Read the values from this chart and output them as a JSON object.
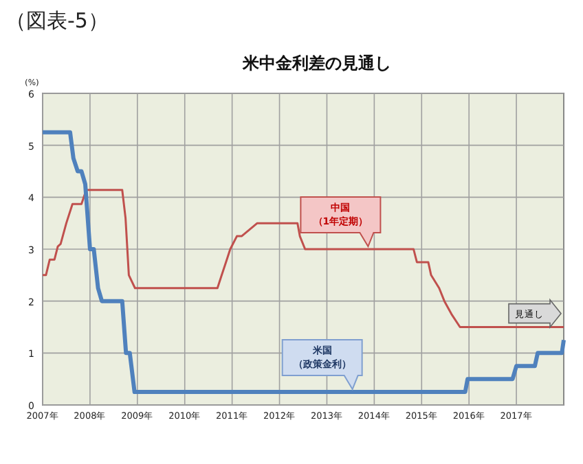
{
  "chart_data": {
    "type": "line",
    "title": "米中金利差の見通し",
    "subtitle": "（図表-5）",
    "ylabel": "(%)",
    "xlim": [
      2007,
      2018
    ],
    "xticks": [
      {
        "value": 2007,
        "label": "2007年"
      },
      {
        "value": 2008,
        "label": "2008年"
      },
      {
        "value": 2009,
        "label": "2009年"
      },
      {
        "value": 2010,
        "label": "2010年"
      },
      {
        "value": 2011,
        "label": "2011年"
      },
      {
        "value": 2012,
        "label": "2012年"
      },
      {
        "value": 2013,
        "label": "2013年"
      },
      {
        "value": 2014,
        "label": "2014年"
      },
      {
        "value": 2015,
        "label": "2015年"
      },
      {
        "value": 2016,
        "label": "2016年"
      },
      {
        "value": 2017,
        "label": "2017年"
      }
    ],
    "ylim": [
      0,
      6
    ],
    "yticks": [
      0,
      1,
      2,
      3,
      4,
      5,
      6
    ],
    "grid": true,
    "series": [
      {
        "color": "#c0504d",
        "x": [
          2007,
          2007.07,
          2007.15,
          2007.25,
          2007.32,
          2007.38,
          2007.5,
          2007.63,
          2007.82,
          2007.92,
          2008.68,
          2008.75,
          2008.82,
          2008.95,
          2010.69,
          2010.78,
          2010.87,
          2010.96,
          2011.1,
          2011.2,
          2011.53,
          2012.38,
          2012.43,
          2012.54,
          2014.83,
          2014.9,
          2015.14,
          2015.2,
          2015.37,
          2015.48,
          2015.63,
          2015.81,
          2018
        ],
        "values": [
          2.5,
          2.5,
          2.8,
          2.8,
          3.05,
          3.1,
          3.5,
          3.87,
          3.87,
          4.14,
          4.14,
          3.6,
          2.5,
          2.25,
          2.25,
          2.5,
          2.75,
          3.0,
          3.25,
          3.25,
          3.5,
          3.5,
          3.25,
          3.0,
          3.0,
          2.75,
          2.75,
          2.5,
          2.25,
          2.0,
          1.75,
          1.5,
          1.5
        ]
      },
      {
        "color": "#4f81bd",
        "x": [
          2007,
          2007.58,
          2007.65,
          2007.74,
          2007.82,
          2007.9,
          2008.0,
          2008.08,
          2008.17,
          2008.25,
          2008.68,
          2008.76,
          2008.84,
          2008.94,
          2015.92,
          2015.97,
          2016.92,
          2017.0,
          2017.39,
          2017.45,
          2017.96,
          2018
        ],
        "values": [
          5.25,
          5.25,
          4.75,
          4.5,
          4.5,
          4.25,
          3.0,
          3.0,
          2.25,
          2.0,
          2.0,
          1.0,
          1.0,
          0.25,
          0.25,
          0.5,
          0.5,
          0.75,
          0.75,
          1.0,
          1.0,
          1.25
        ]
      }
    ],
    "annotations": [
      {
        "text": "中国（1年定期）",
        "x": 2013.87,
        "y": 3.0
      },
      {
        "text": "米国（政策金利）",
        "x": 2013.54,
        "y": 0.25
      },
      "見通し"
    ]
  }
}
